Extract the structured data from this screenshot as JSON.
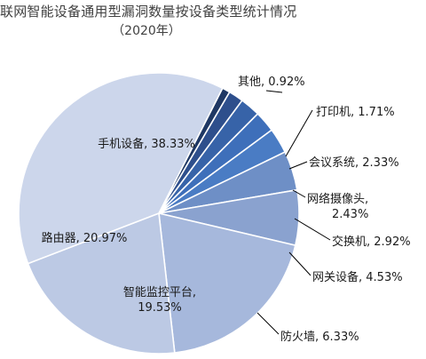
{
  "chart_data": {
    "type": "pie",
    "title": "联网智能设备通用型漏洞数量按设备类型统计情况",
    "subtitle": "（2020年）",
    "categories": [
      "其他",
      "打印机",
      "会议系统",
      "网络摄像头",
      "交换机",
      "网关设备",
      "防火墙",
      "智能监控平台",
      "路由器",
      "手机设备"
    ],
    "values": [
      0.92,
      1.71,
      2.33,
      2.43,
      2.92,
      4.53,
      6.33,
      19.53,
      20.97,
      38.33
    ],
    "unit": "%",
    "labels": [
      "其他, 0.92%",
      "打印机, 1.71%",
      "会议系统, 2.33%",
      "网络摄像头,",
      "交换机, 2.92%",
      "网关设备, 4.53%",
      "防火墙, 6.33%",
      "智能监控平台,",
      "路由器, 20.97%",
      "手机设备, 38.33%"
    ],
    "label_second_lines": [
      "",
      "",
      "",
      "2.43%",
      "",
      "",
      "",
      "19.53%",
      "",
      ""
    ],
    "colors": [
      "#1f3864",
      "#2e4f8c",
      "#3763a8",
      "#3e6fba",
      "#4a7cc4",
      "#6e8fc6",
      "#8aa2cf",
      "#a6b8dc",
      "#bcc9e4",
      "#ccd6eb"
    ]
  }
}
